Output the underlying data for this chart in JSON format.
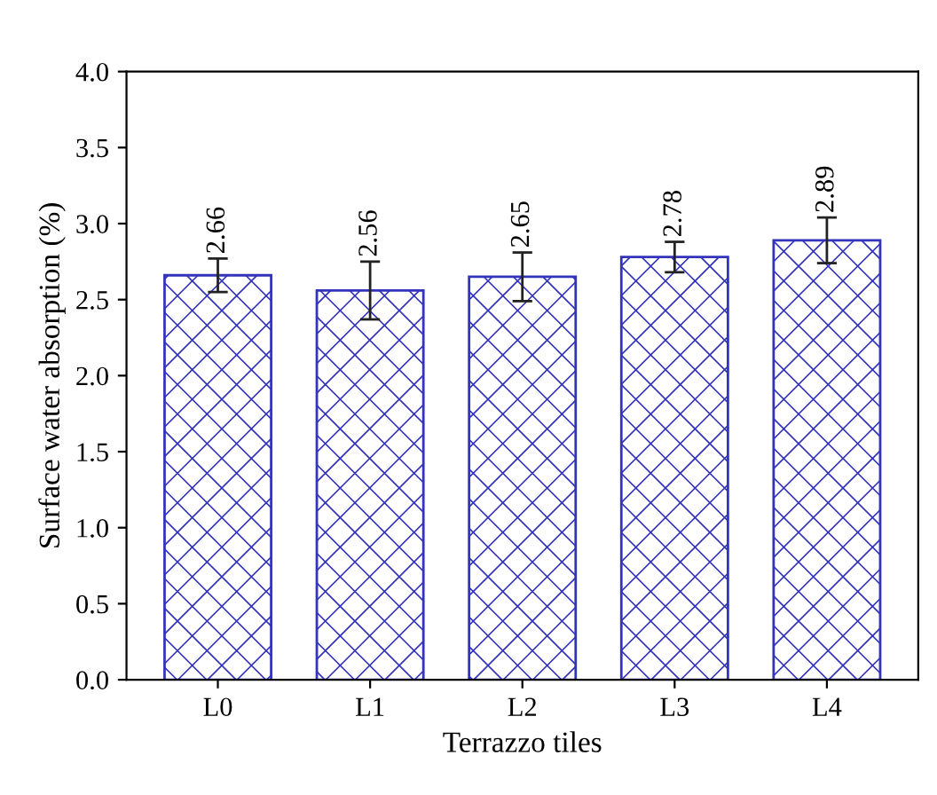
{
  "chart_data": {
    "type": "bar",
    "xlabel": "Terrazzo tiles",
    "ylabel": "Surface water absorption (%)",
    "categories": [
      "L0",
      "L1",
      "L2",
      "L3",
      "L4"
    ],
    "values": [
      2.66,
      2.56,
      2.65,
      2.78,
      2.89
    ],
    "errors": [
      0.11,
      0.19,
      0.16,
      0.1,
      0.15
    ],
    "color": "#3333bb",
    "ylim": [
      0,
      4.0
    ],
    "yticks": [
      {
        "value": 0,
        "label": "0.0"
      },
      {
        "value": 0.5,
        "label": "0.5"
      },
      {
        "value": 1.0,
        "label": "1.0"
      },
      {
        "value": 1.5,
        "label": "1.5"
      },
      {
        "value": 2.0,
        "label": "2.0"
      },
      {
        "value": 2.5,
        "label": "2.5"
      },
      {
        "value": 3.0,
        "label": "3.0"
      },
      {
        "value": 3.5,
        "label": "3.5"
      },
      {
        "value": 4.0,
        "label": "4.0"
      }
    ],
    "data_labels": true,
    "grid": false
  }
}
